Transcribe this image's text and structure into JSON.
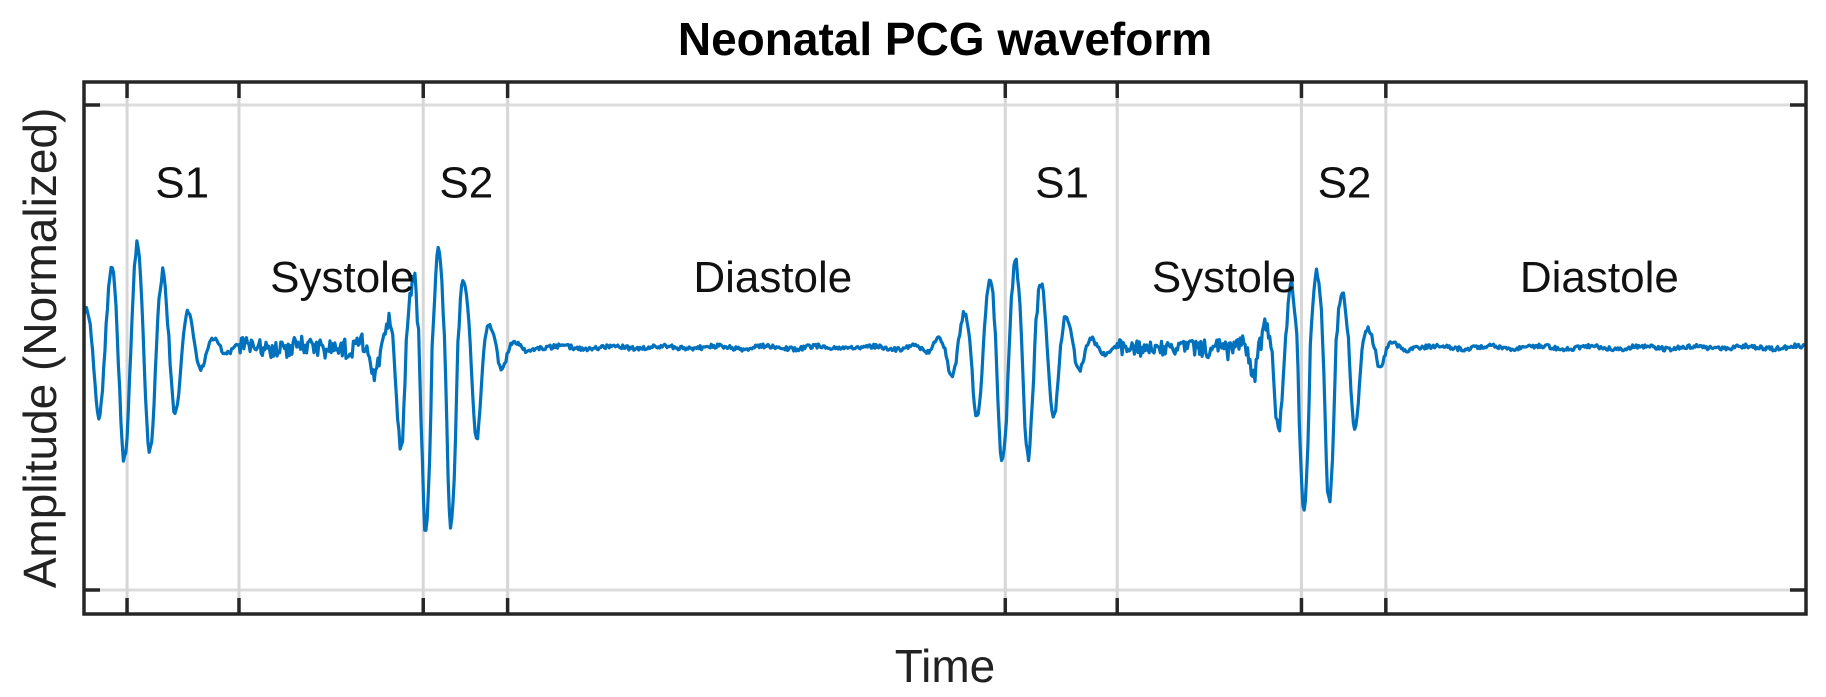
{
  "chart_data": {
    "type": "line",
    "title": "Neonatal PCG waveform",
    "xlabel": "Time",
    "ylabel": "Amplitude (Normalized)",
    "grid": true,
    "xlim": [
      0,
      1.0
    ],
    "ylim": [
      -1.0,
      1.0
    ],
    "segment_boundaries": [
      0.025,
      0.09,
      0.197,
      0.246,
      0.535,
      0.6,
      0.707,
      0.756
    ],
    "segment_labels": [
      {
        "text": "S1",
        "x": 0.057,
        "y": 0.68
      },
      {
        "text": "Systole",
        "x": 0.15,
        "y": 0.29
      },
      {
        "text": "S2",
        "x": 0.222,
        "y": 0.68
      },
      {
        "text": "Diastole",
        "x": 0.4,
        "y": 0.29
      },
      {
        "text": "S1",
        "x": 0.568,
        "y": 0.68
      },
      {
        "text": "Systole",
        "x": 0.662,
        "y": 0.29
      },
      {
        "text": "S2",
        "x": 0.732,
        "y": 0.68
      },
      {
        "text": "Diastole",
        "x": 0.88,
        "y": 0.29
      }
    ],
    "series": [
      {
        "color": "#0072BD",
        "events": [
          {
            "kind": "S1",
            "t": 0.03,
            "peak": 0.48,
            "trough": -0.56
          },
          {
            "kind": "S2",
            "t": 0.205,
            "peak": 0.46,
            "trough": -0.95
          },
          {
            "kind": "S1",
            "t": 0.54,
            "peak": 0.42,
            "trough": -0.58
          },
          {
            "kind": "S2",
            "t": 0.715,
            "peak": 0.38,
            "trough": -0.84
          }
        ]
      }
    ]
  }
}
